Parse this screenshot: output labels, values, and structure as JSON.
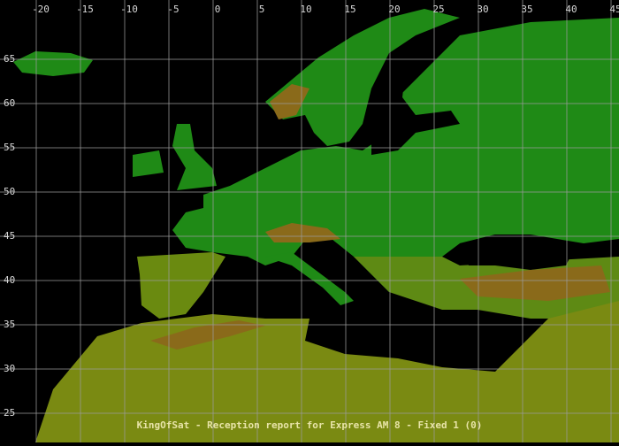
{
  "map": {
    "lon_ticks": [
      -20,
      -15,
      -10,
      -5,
      0,
      5,
      10,
      15,
      20,
      25,
      30,
      35,
      40,
      45
    ],
    "lat_ticks": [
      65,
      60,
      55,
      50,
      45,
      40,
      35,
      30,
      25
    ],
    "caption": "KingOfSat - Reception report for Express AM 8 - Fixed 1 (0)"
  }
}
